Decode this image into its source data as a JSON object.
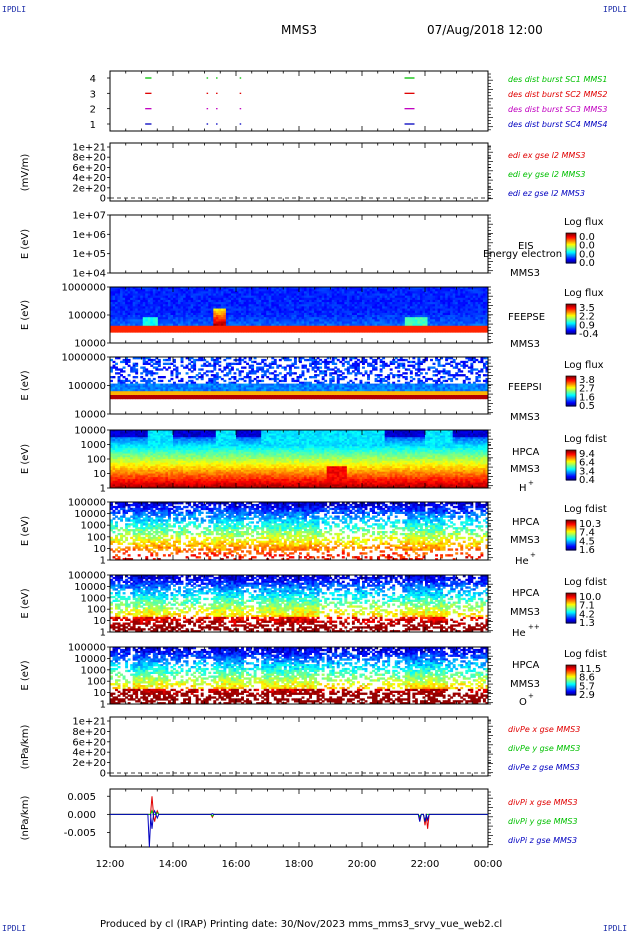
{
  "corners": {
    "tl": "IPDLI",
    "tr": "IPDLI",
    "bl": "IPDLI",
    "br": "IPDLI"
  },
  "header": {
    "spacecraft": "MMS3",
    "datetime": "07/Aug/2018 12:00"
  },
  "footer": {
    "text": "Produced by cl (IRAP)   Printing date: 30/Nov/2023   mms_mms3_srvy_vue_web2.cl"
  },
  "colors": {
    "red": "#e00000",
    "green": "#00c000",
    "blue": "#0000c0",
    "magenta": "#c000c0",
    "orange": "#ff6a00"
  },
  "chart_data": [
    {
      "id": "burst",
      "type": "scatter",
      "ylabel": "",
      "yticks": [
        "1",
        "2",
        "3",
        "4"
      ],
      "x_range": [
        "12:00",
        "00:00"
      ],
      "series": [
        {
          "name": "des dist burst SC1 MMS1",
          "color": "#00c000",
          "y": 4,
          "intervals": [
            [
              "13:07",
              "13:19"
            ],
            [
              "15:04",
              "15:06"
            ],
            [
              "15:22",
              "15:24"
            ],
            [
              "16:07",
              "16:08"
            ],
            [
              "21:21",
              "21:40"
            ]
          ]
        },
        {
          "name": "des dist burst SC2 MMS2",
          "color": "#e00000",
          "y": 3,
          "intervals": [
            [
              "13:07",
              "13:19"
            ],
            [
              "15:04",
              "15:06"
            ],
            [
              "15:22",
              "15:24"
            ],
            [
              "16:07",
              "16:08"
            ],
            [
              "21:21",
              "21:40"
            ]
          ]
        },
        {
          "name": "des dist burst SC3 MMS3",
          "color": "#c000c0",
          "y": 2,
          "intervals": [
            [
              "13:07",
              "13:19"
            ],
            [
              "15:04",
              "15:06"
            ],
            [
              "15:22",
              "15:24"
            ],
            [
              "16:07",
              "16:08"
            ],
            [
              "21:21",
              "21:40"
            ]
          ]
        },
        {
          "name": "des dist burst SC4 MMS4",
          "color": "#0000c0",
          "y": 1,
          "intervals": [
            [
              "13:07",
              "13:19"
            ],
            [
              "15:04",
              "15:06"
            ],
            [
              "15:22",
              "15:24"
            ],
            [
              "16:07",
              "16:08"
            ],
            [
              "21:21",
              "21:40"
            ]
          ]
        }
      ]
    },
    {
      "id": "edi",
      "type": "line",
      "ylabel": "(mV/m)",
      "yticks": [
        "0",
        "2e+20",
        "4e+20",
        "6e+20",
        "8e+20",
        "1e+21"
      ],
      "baseline": "dashed at 0",
      "series": [
        {
          "name": "edi ex gse l2 MMS3",
          "color": "#e00000"
        },
        {
          "name": "edi ey gse l2 MMS3",
          "color": "#00c000"
        },
        {
          "name": "edi ez gse l2 MMS3",
          "color": "#0000c0"
        }
      ]
    },
    {
      "id": "eis",
      "type": "heatmap",
      "ylabel": "E (eV)",
      "yscale": "log",
      "yticks": [
        "1e+04",
        "1e+05",
        "1e+06",
        "1e+07"
      ],
      "instrument": "EIS",
      "overlay_text": "Energy electron to",
      "spacecraft": "MMS3",
      "colorbar": {
        "label": "Log flux",
        "ticks": [
          "0.0",
          "0.0",
          "0.0",
          "0.0"
        ]
      }
    },
    {
      "id": "feepse",
      "type": "heatmap",
      "ylabel": "E (eV)",
      "yscale": "log",
      "yticks": [
        "10000",
        "100000",
        "1000000"
      ],
      "instrument": "FEEPSE",
      "spacecraft": "MMS3",
      "colorbar": {
        "label": "Log flux",
        "ticks": [
          "3.5",
          "2.2",
          "0.9",
          "-0.4"
        ]
      }
    },
    {
      "id": "feepsi",
      "type": "heatmap",
      "ylabel": "E (eV)",
      "yscale": "log",
      "yticks": [
        "10000",
        "100000",
        "1000000"
      ],
      "instrument": "FEEPSI",
      "spacecraft": "MMS3",
      "colorbar": {
        "label": "Log flux",
        "ticks": [
          "3.8",
          "2.7",
          "1.6",
          "0.5"
        ]
      }
    },
    {
      "id": "hpca_h",
      "type": "heatmap",
      "ylabel": "E (eV)",
      "yscale": "log",
      "yticks": [
        "1",
        "10",
        "100",
        "1000",
        "10000"
      ],
      "instrument": "HPCA",
      "spacecraft": "MMS3",
      "species": "H",
      "charge": "+",
      "colorbar": {
        "label": "Log fdist",
        "ticks": [
          "9.4",
          "6.4",
          "3.4",
          "0.4"
        ]
      }
    },
    {
      "id": "hpca_he",
      "type": "heatmap",
      "ylabel": "E (eV)",
      "yscale": "log",
      "yticks": [
        "1",
        "10",
        "100",
        "1000",
        "10000",
        "100000"
      ],
      "instrument": "HPCA",
      "spacecraft": "MMS3",
      "species": "He",
      "charge": "+",
      "colorbar": {
        "label": "Log fdist",
        "ticks": [
          "10.3",
          "7.4",
          "4.5",
          "1.6"
        ]
      }
    },
    {
      "id": "hpca_hepp",
      "type": "heatmap",
      "ylabel": "E (eV)",
      "yscale": "log",
      "yticks": [
        "1",
        "10",
        "100",
        "1000",
        "10000",
        "100000"
      ],
      "instrument": "HPCA",
      "spacecraft": "MMS3",
      "species": "He",
      "charge": "++",
      "colorbar": {
        "label": "Log fdist",
        "ticks": [
          "10.0",
          "7.1",
          "4.2",
          "1.3"
        ]
      }
    },
    {
      "id": "hpca_o",
      "type": "heatmap",
      "ylabel": "E (eV)",
      "yscale": "log",
      "yticks": [
        "1",
        "10",
        "100",
        "1000",
        "10000",
        "100000"
      ],
      "instrument": "HPCA",
      "spacecraft": "MMS3",
      "species": "O",
      "charge": "+",
      "colorbar": {
        "label": "Log fdist",
        "ticks": [
          "11.5",
          "8.6",
          "5.7",
          "2.9"
        ]
      }
    },
    {
      "id": "divpe",
      "type": "line",
      "ylabel": "(nPa/km)",
      "yticks": [
        "0",
        "2e+20",
        "4e+20",
        "6e+20",
        "8e+20",
        "1e+21"
      ],
      "baseline": "dashed at 0",
      "series": [
        {
          "name": "divPe x gse MMS3",
          "color": "#e00000"
        },
        {
          "name": "divPe y gse MMS3",
          "color": "#00c000"
        },
        {
          "name": "divPe z gse MMS3",
          "color": "#0000c0"
        }
      ]
    },
    {
      "id": "divpi",
      "type": "line",
      "ylabel": "(nPa/km)",
      "yticks": [
        "-0.005",
        "0.000",
        "0.005"
      ],
      "ylim": [
        -0.009,
        0.007
      ],
      "x": [
        "13:15",
        "13:20",
        "13:25",
        "13:30",
        "15:15",
        "21:50",
        "22:00",
        "22:05"
      ],
      "series": [
        {
          "name": "divPi x gse MMS3",
          "color": "#e00000",
          "values": [
            0.0,
            0.005,
            -0.002,
            0.001,
            -0.0008,
            -0.001,
            -0.003,
            -0.004
          ]
        },
        {
          "name": "divPi y gse MMS3",
          "color": "#00c000",
          "values": [
            0.0,
            0.001,
            0.0,
            0.0005,
            -0.0005,
            -0.0006,
            -0.002,
            0.0
          ]
        },
        {
          "name": "divPi z gse MMS3",
          "color": "#0000c0",
          "values": [
            -0.009,
            -0.004,
            0.001,
            -0.001,
            0.0002,
            -0.002,
            -0.002,
            -0.0015
          ]
        }
      ]
    }
  ],
  "xaxis": {
    "ticks": [
      "12:00",
      "14:00",
      "16:00",
      "18:00",
      "20:00",
      "22:00",
      "00:00"
    ]
  }
}
